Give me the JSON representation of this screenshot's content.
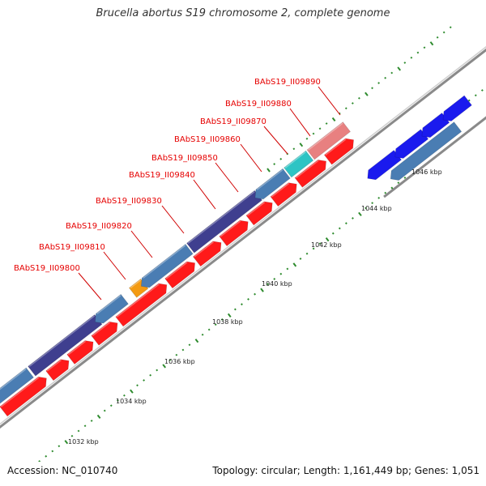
{
  "title": "Brucella abortus S19 chromosome 2, complete genome",
  "footer": {
    "accession": "Accession: NC_010740",
    "stats": "Topology: circular; Length: 1,161,449 bp; Genes: 1,051"
  },
  "colors": {
    "background": "#ffffff",
    "backbone": "#777777",
    "forward_cds": "#ff1a1a",
    "reverse_cds_steelblue": "#4a7db3",
    "reverse_cds_darkblue": "#3f3f8f",
    "reverse_cds_blue": "#1a1aee",
    "orange_feature": "#f39a12",
    "cyan_feature": "#2ec4c4",
    "pink_feature": "#e88080",
    "grey_feature": "#bbbbbb",
    "tick": "#2e8b2e",
    "label": "#e60000"
  },
  "kbp_labels": [
    "1032 kbp",
    "1034 kbp",
    "1036 kbp",
    "1038 kbp",
    "1040 kbp",
    "1042 kbp",
    "1044 kbp",
    "1046 kbp"
  ],
  "gene_labels": [
    "BAbS19_II09800",
    "BAbS19_II09810",
    "BAbS19_II09820",
    "BAbS19_II09830",
    "BAbS19_II09840",
    "BAbS19_II09850",
    "BAbS19_II09860",
    "BAbS19_II09870",
    "BAbS19_II09880",
    "BAbS19_II09890"
  ]
}
